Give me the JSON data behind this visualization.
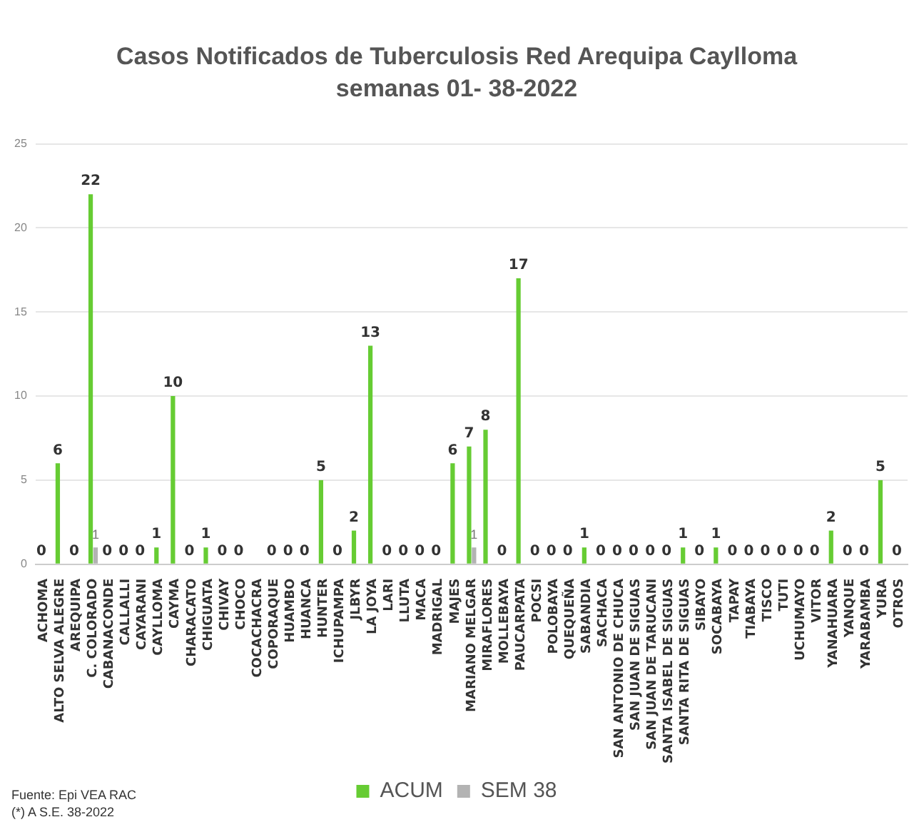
{
  "chart_data": {
    "type": "bar",
    "title": "Casos Notificados de Tuberculosis Red Arequipa Caylloma",
    "subtitle": "semanas 01- 38-2022",
    "categories": [
      "ACHOMA",
      "ALTO SELVA ALEGRE",
      "AREQUIPA",
      "C. COLORADO",
      "CABANACONDE",
      "CALLALLI",
      "CAYARANI",
      "CAYLLOMA",
      "CAYMA",
      "CHARACATO",
      "CHIGUATA",
      "CHIVAY",
      "CHOCO",
      "COCACHACRA",
      "COPORAQUE",
      "HUAMBO",
      "HUANCA",
      "HUNTER",
      "ICHUPAMPA",
      "JLBYR",
      "LA JOYA",
      "LARI",
      "LLUTA",
      "MACA",
      "MADRIGAL",
      "MAJES",
      "MARIANO MELGAR",
      "MIRAFLORES",
      "MOLLEBAYA",
      "PAUCARPATA",
      "POCSI",
      "POLOBAYA",
      "QUEQUEÑA",
      "SABANDIA",
      "SACHACA",
      "SAN ANTONIO DE CHUCA",
      "SAN JUAN DE SIGUAS",
      "SAN JUAN DE TARUCANI",
      "SANTA ISABEL DE SIGUAS",
      "SANTA RITA DE SIGUAS",
      "SIBAYO",
      "SOCABAYA",
      "TAPAY",
      "TIABAYA",
      "TISCO",
      "TUTI",
      "UCHUMAYO",
      "VITOR",
      "YANAHUARA",
      "YANQUE",
      "YARABAMBA",
      "YURA",
      "OTROS"
    ],
    "series": [
      {
        "name": "ACUM",
        "color": "#66cc33",
        "values": [
          0,
          6,
          0,
          22,
          0,
          0,
          0,
          1,
          10,
          0,
          1,
          0,
          0,
          0,
          0,
          0,
          0,
          5,
          0,
          2,
          13,
          0,
          0,
          0,
          0,
          6,
          7,
          8,
          0,
          17,
          0,
          0,
          0,
          1,
          0,
          0,
          0,
          0,
          0,
          1,
          0,
          1,
          0,
          0,
          0,
          0,
          0,
          0,
          2,
          0,
          0,
          5,
          0
        ],
        "value_labels": [
          "0",
          "6",
          "0",
          "22",
          "0",
          "0",
          "0",
          "1",
          "10",
          "0",
          "1",
          "0",
          "0",
          null,
          "0",
          "0",
          "0",
          "5",
          "0",
          "2",
          "13",
          "0",
          "0",
          "0",
          "0",
          "6",
          "7",
          "8",
          "0",
          "17",
          "0",
          "0",
          "0",
          "1",
          "0",
          "0",
          "0",
          "0",
          "0",
          "1",
          "0",
          "1",
          "0",
          "0",
          "0",
          "0",
          "0",
          "0",
          "2",
          "0",
          "0",
          "5",
          "0"
        ]
      },
      {
        "name": "SEM 38",
        "color": "#b3b3b3",
        "values": [
          0,
          0,
          0,
          1,
          0,
          0,
          0,
          0,
          0,
          0,
          0,
          0,
          0,
          0,
          0,
          0,
          0,
          0,
          0,
          0,
          0,
          0,
          0,
          0,
          0,
          0,
          1,
          0,
          0,
          0,
          0,
          0,
          0,
          0,
          0,
          0,
          0,
          0,
          0,
          0,
          0,
          0,
          0,
          0,
          0,
          0,
          0,
          0,
          0,
          0,
          0,
          0,
          0
        ],
        "value_labels": [
          null,
          null,
          null,
          "1",
          null,
          null,
          null,
          null,
          null,
          null,
          null,
          null,
          null,
          null,
          null,
          null,
          null,
          null,
          null,
          null,
          null,
          null,
          null,
          null,
          null,
          null,
          "1",
          null,
          null,
          null,
          null,
          null,
          null,
          null,
          null,
          null,
          null,
          null,
          null,
          null,
          null,
          null,
          null,
          null,
          null,
          null,
          null,
          null,
          null,
          null,
          null,
          null,
          null
        ]
      }
    ],
    "ylim": [
      0,
      25
    ],
    "yticks": [
      0,
      5,
      10,
      15,
      20,
      25
    ],
    "grid": "y",
    "legend": "bottom",
    "annotations": [
      "Fuente: Epi VEA RAC",
      "(*) A S.E. 38-2022"
    ]
  }
}
